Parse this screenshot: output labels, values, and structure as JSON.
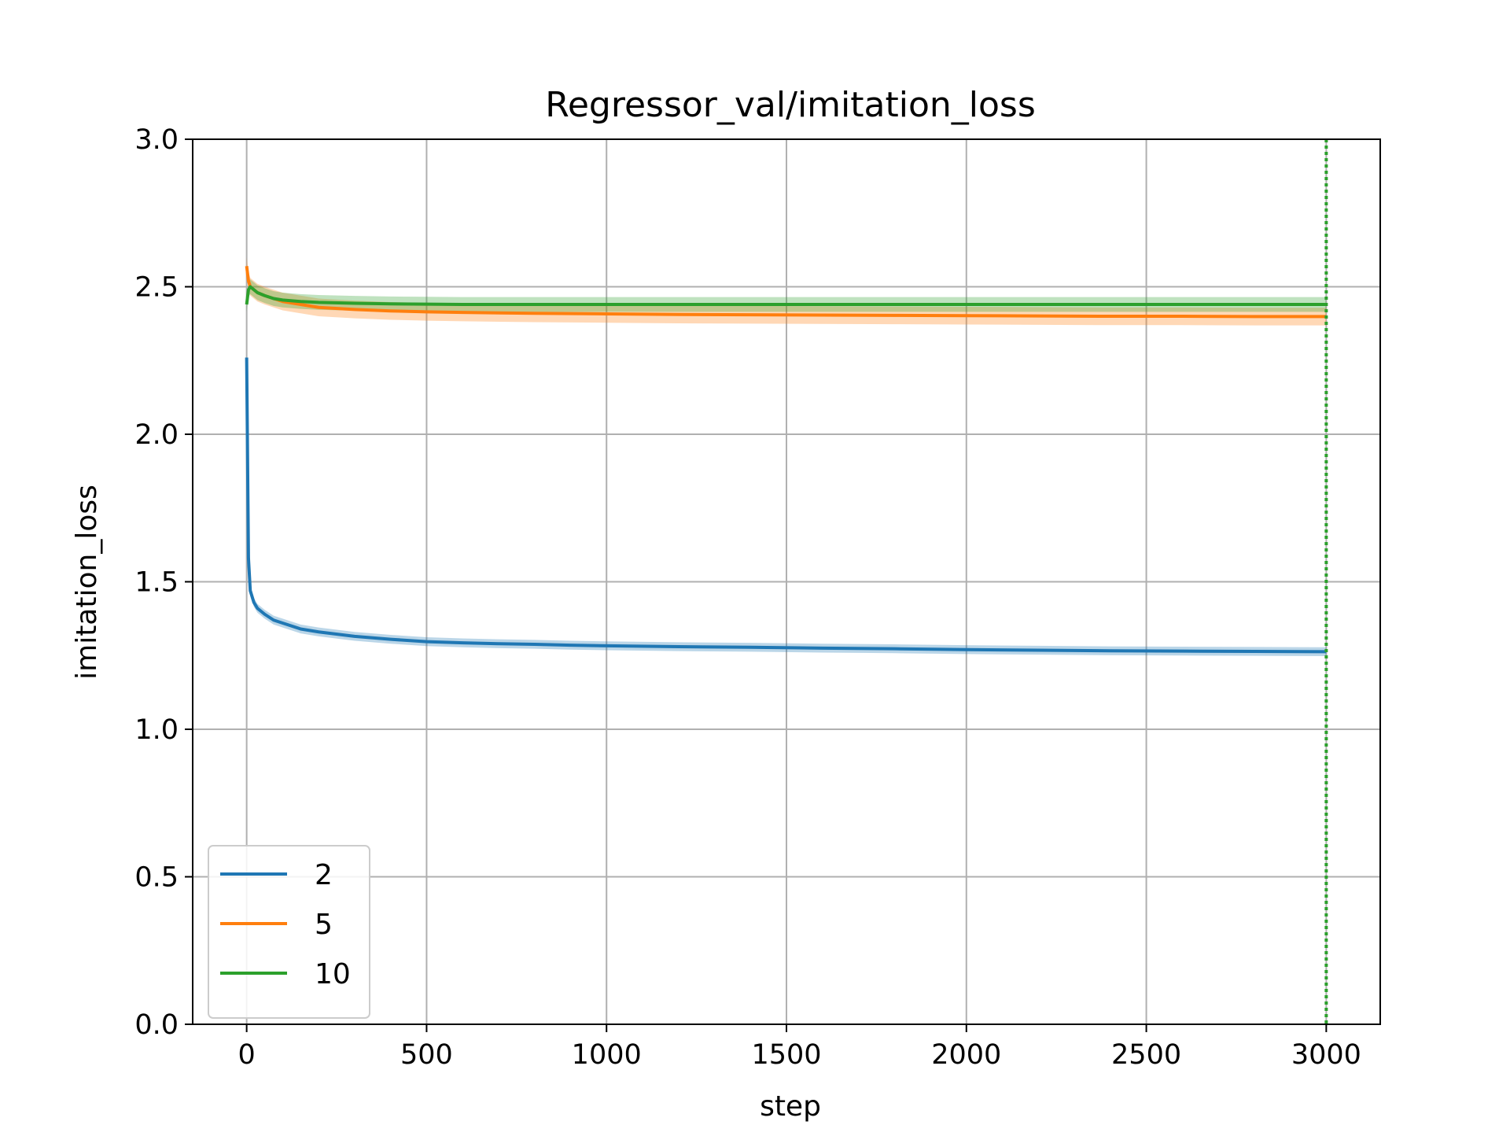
{
  "chart_data": {
    "type": "line",
    "title": "Regressor_val/imitation_loss",
    "xlabel": "step",
    "ylabel": "imitation_loss",
    "xlim": [
      -150,
      3150
    ],
    "ylim": [
      0.0,
      3.0
    ],
    "xticks": [
      0,
      500,
      1000,
      1500,
      2000,
      2500,
      3000
    ],
    "xtick_labels": [
      "0",
      "500",
      "1000",
      "1500",
      "2000",
      "2500",
      "3000"
    ],
    "yticks": [
      0.0,
      0.5,
      1.0,
      1.5,
      2.0,
      2.5,
      3.0
    ],
    "ytick_labels": [
      "0.0",
      "0.5",
      "1.0",
      "1.5",
      "2.0",
      "2.5",
      "3.0"
    ],
    "grid": true,
    "legend_position": "lower-left",
    "vertical_line": {
      "x": 3000,
      "color": "#2ca02c",
      "style": "dotted"
    },
    "series": [
      {
        "name": "2",
        "color": "#1f77b4",
        "band": 0.015,
        "x": [
          0,
          5,
          10,
          20,
          30,
          50,
          75,
          100,
          150,
          200,
          300,
          400,
          500,
          600,
          700,
          800,
          900,
          1000,
          1200,
          1400,
          1600,
          1800,
          2000,
          2200,
          2400,
          2600,
          2800,
          3000
        ],
        "y": [
          2.26,
          1.58,
          1.47,
          1.43,
          1.41,
          1.39,
          1.37,
          1.36,
          1.34,
          1.33,
          1.315,
          1.305,
          1.297,
          1.293,
          1.29,
          1.288,
          1.285,
          1.283,
          1.28,
          1.278,
          1.275,
          1.273,
          1.27,
          1.268,
          1.266,
          1.265,
          1.264,
          1.263
        ]
      },
      {
        "name": "5",
        "color": "#ff7f0e",
        "band": 0.03,
        "x": [
          0,
          5,
          10,
          20,
          30,
          50,
          75,
          100,
          150,
          200,
          300,
          400,
          500,
          600,
          800,
          1000,
          1200,
          1400,
          1600,
          1800,
          2000,
          2200,
          2400,
          2600,
          2800,
          3000
        ],
        "y": [
          2.57,
          2.52,
          2.5,
          2.49,
          2.48,
          2.47,
          2.46,
          2.45,
          2.44,
          2.43,
          2.423,
          2.418,
          2.415,
          2.413,
          2.41,
          2.408,
          2.406,
          2.405,
          2.404,
          2.403,
          2.402,
          2.401,
          2.4,
          2.4,
          2.399,
          2.399
        ]
      },
      {
        "name": "10",
        "color": "#2ca02c",
        "band": 0.025,
        "x": [
          0,
          5,
          10,
          20,
          30,
          50,
          75,
          100,
          150,
          200,
          300,
          400,
          500,
          600,
          800,
          1000,
          1200,
          1400,
          1600,
          1800,
          2000,
          2200,
          2400,
          2600,
          2800,
          3000
        ],
        "y": [
          2.44,
          2.49,
          2.5,
          2.49,
          2.48,
          2.47,
          2.46,
          2.455,
          2.45,
          2.447,
          2.444,
          2.442,
          2.441,
          2.44,
          2.44,
          2.44,
          2.44,
          2.44,
          2.44,
          2.44,
          2.44,
          2.44,
          2.44,
          2.44,
          2.44,
          2.44
        ]
      }
    ]
  }
}
